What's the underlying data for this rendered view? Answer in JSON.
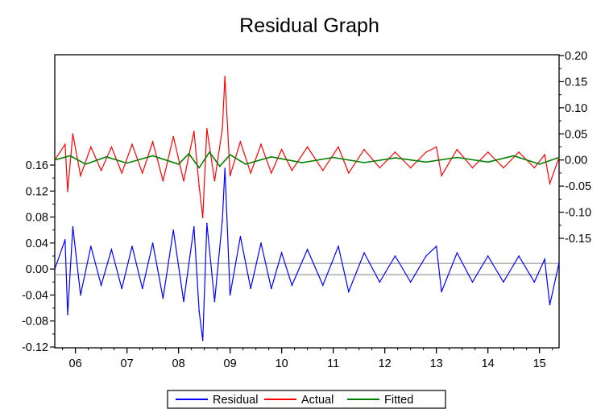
{
  "chart_data": {
    "type": "line",
    "title": "Residual Graph",
    "xlabel": "",
    "ylabel": "",
    "x_ticks": [
      "06",
      "07",
      "08",
      "09",
      "10",
      "11",
      "12",
      "13",
      "14",
      "15"
    ],
    "x_range": [
      2005.6,
      2015.38
    ],
    "left_axis": {
      "ticks": [
        "0.16",
        "0.12",
        "0.08",
        "0.04",
        "0.00",
        "-0.04",
        "-0.08",
        "-0.12"
      ],
      "range": [
        -0.12,
        0.16
      ]
    },
    "right_axis": {
      "ticks": [
        "0.20",
        "0.15",
        "0.10",
        "0.05",
        "0.00",
        "-0.05",
        "-0.10",
        "-0.15"
      ],
      "range": [
        -0.15,
        0.2
      ]
    },
    "reference_lines_left_axis": [
      0.0087,
      -0.0087
    ],
    "legend_position": "bottom-center",
    "series": [
      {
        "name": "Residual",
        "axis": "left",
        "color": "#0000ff",
        "points": [
          [
            2005.6,
            0.0
          ],
          [
            2005.8,
            0.045
          ],
          [
            2005.85,
            -0.07
          ],
          [
            2005.95,
            0.065
          ],
          [
            2006.1,
            -0.04
          ],
          [
            2006.3,
            0.035
          ],
          [
            2006.5,
            -0.025
          ],
          [
            2006.7,
            0.03
          ],
          [
            2006.9,
            -0.03
          ],
          [
            2007.1,
            0.035
          ],
          [
            2007.3,
            -0.03
          ],
          [
            2007.5,
            0.04
          ],
          [
            2007.7,
            -0.045
          ],
          [
            2007.9,
            0.06
          ],
          [
            2008.1,
            -0.05
          ],
          [
            2008.3,
            0.065
          ],
          [
            2008.4,
            -0.065
          ],
          [
            2008.47,
            -0.11
          ],
          [
            2008.55,
            0.07
          ],
          [
            2008.7,
            -0.05
          ],
          [
            2008.85,
            0.075
          ],
          [
            2008.9,
            0.155
          ],
          [
            2009.0,
            -0.04
          ],
          [
            2009.2,
            0.05
          ],
          [
            2009.4,
            -0.03
          ],
          [
            2009.6,
            0.04
          ],
          [
            2009.8,
            -0.03
          ],
          [
            2010.0,
            0.025
          ],
          [
            2010.2,
            -0.025
          ],
          [
            2010.5,
            0.03
          ],
          [
            2010.8,
            -0.025
          ],
          [
            2011.1,
            0.035
          ],
          [
            2011.3,
            -0.035
          ],
          [
            2011.6,
            0.025
          ],
          [
            2011.9,
            -0.02
          ],
          [
            2012.2,
            0.02
          ],
          [
            2012.5,
            -0.02
          ],
          [
            2012.8,
            0.02
          ],
          [
            2013.0,
            0.035
          ],
          [
            2013.1,
            -0.035
          ],
          [
            2013.4,
            0.025
          ],
          [
            2013.7,
            -0.02
          ],
          [
            2014.0,
            0.02
          ],
          [
            2014.3,
            -0.02
          ],
          [
            2014.6,
            0.02
          ],
          [
            2014.9,
            -0.02
          ],
          [
            2015.1,
            0.015
          ],
          [
            2015.2,
            -0.055
          ],
          [
            2015.38,
            0.01
          ]
        ]
      },
      {
        "name": "Actual",
        "axis": "right",
        "color": "#ff0000",
        "points": [
          [
            2005.6,
            0.0
          ],
          [
            2005.8,
            0.03
          ],
          [
            2005.85,
            -0.06
          ],
          [
            2005.95,
            0.05
          ],
          [
            2006.1,
            -0.03
          ],
          [
            2006.3,
            0.025
          ],
          [
            2006.5,
            -0.02
          ],
          [
            2006.7,
            0.025
          ],
          [
            2006.9,
            -0.025
          ],
          [
            2007.1,
            0.03
          ],
          [
            2007.3,
            -0.025
          ],
          [
            2007.5,
            0.035
          ],
          [
            2007.7,
            -0.04
          ],
          [
            2007.9,
            0.045
          ],
          [
            2008.1,
            -0.04
          ],
          [
            2008.3,
            0.055
          ],
          [
            2008.4,
            -0.05
          ],
          [
            2008.47,
            -0.11
          ],
          [
            2008.55,
            0.06
          ],
          [
            2008.7,
            -0.04
          ],
          [
            2008.85,
            0.06
          ],
          [
            2008.9,
            0.16
          ],
          [
            2009.0,
            -0.03
          ],
          [
            2009.2,
            0.035
          ],
          [
            2009.4,
            -0.025
          ],
          [
            2009.6,
            0.03
          ],
          [
            2009.8,
            -0.025
          ],
          [
            2010.0,
            0.02
          ],
          [
            2010.2,
            -0.02
          ],
          [
            2010.5,
            0.025
          ],
          [
            2010.8,
            -0.02
          ],
          [
            2011.1,
            0.025
          ],
          [
            2011.3,
            -0.025
          ],
          [
            2011.6,
            0.02
          ],
          [
            2011.9,
            -0.015
          ],
          [
            2012.2,
            0.015
          ],
          [
            2012.5,
            -0.015
          ],
          [
            2012.8,
            0.015
          ],
          [
            2013.0,
            0.025
          ],
          [
            2013.1,
            -0.03
          ],
          [
            2013.4,
            0.02
          ],
          [
            2013.7,
            -0.015
          ],
          [
            2014.0,
            0.015
          ],
          [
            2014.3,
            -0.015
          ],
          [
            2014.6,
            0.015
          ],
          [
            2014.9,
            -0.015
          ],
          [
            2015.1,
            0.01
          ],
          [
            2015.2,
            -0.045
          ],
          [
            2015.38,
            0.005
          ]
        ]
      },
      {
        "name": "Fitted",
        "axis": "right",
        "color": "#008000",
        "points": [
          [
            2005.6,
            0.0
          ],
          [
            2005.9,
            0.008
          ],
          [
            2006.2,
            -0.008
          ],
          [
            2006.6,
            0.006
          ],
          [
            2007.0,
            -0.006
          ],
          [
            2007.5,
            0.008
          ],
          [
            2008.0,
            -0.008
          ],
          [
            2008.2,
            0.012
          ],
          [
            2008.4,
            -0.015
          ],
          [
            2008.6,
            0.015
          ],
          [
            2008.8,
            -0.012
          ],
          [
            2009.0,
            0.01
          ],
          [
            2009.3,
            -0.008
          ],
          [
            2009.8,
            0.006
          ],
          [
            2010.4,
            -0.005
          ],
          [
            2011.0,
            0.005
          ],
          [
            2011.6,
            -0.005
          ],
          [
            2012.2,
            0.004
          ],
          [
            2012.8,
            -0.004
          ],
          [
            2013.4,
            0.005
          ],
          [
            2014.0,
            -0.004
          ],
          [
            2014.5,
            0.008
          ],
          [
            2015.0,
            -0.008
          ],
          [
            2015.38,
            0.005
          ]
        ]
      }
    ]
  }
}
